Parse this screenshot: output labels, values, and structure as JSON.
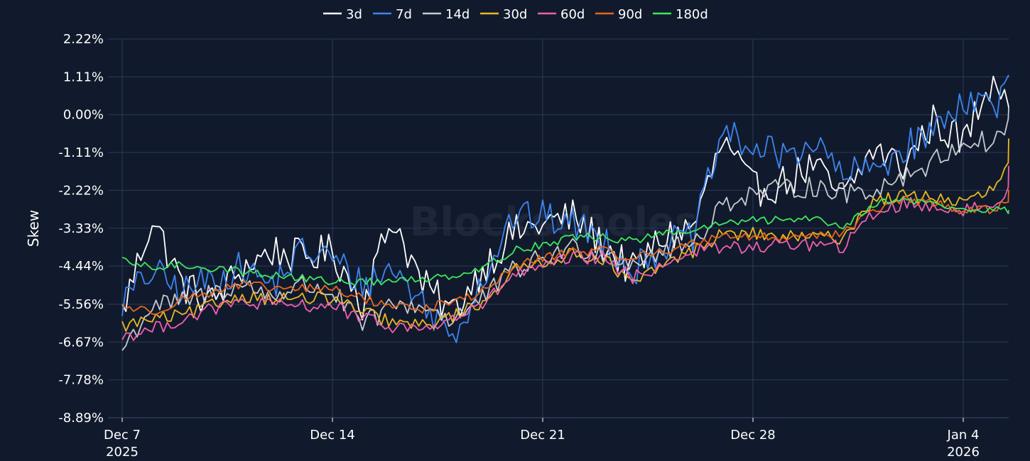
{
  "chart_data": {
    "type": "line",
    "xlabel": "",
    "ylabel": "Skew",
    "ylim": [
      -8.89,
      2.22
    ],
    "y_ticks": [
      "2.22%",
      "1.11%",
      "0.00%",
      "-1.11%",
      "-2.22%",
      "-3.33%",
      "-4.44%",
      "-5.56%",
      "-6.67%",
      "-7.78%",
      "-8.89%"
    ],
    "y_tick_values": [
      2.22,
      1.11,
      0.0,
      -1.11,
      -2.22,
      -3.33,
      -4.44,
      -5.56,
      -6.67,
      -7.78,
      -8.89
    ],
    "x_range": [
      "2025-12-07",
      "2026-01-06"
    ],
    "x_ticks": [
      {
        "date": "2025-12-07",
        "label": "Dec 7",
        "sublabel": "2025"
      },
      {
        "date": "2025-12-14",
        "label": "Dec 14",
        "sublabel": ""
      },
      {
        "date": "2025-12-21",
        "label": "Dec 21",
        "sublabel": ""
      },
      {
        "date": "2025-12-28",
        "label": "Dec 28",
        "sublabel": ""
      },
      {
        "date": "2026-01-04",
        "label": "Jan 4",
        "sublabel": "2026"
      }
    ],
    "legend_position": "top-center",
    "grid": true,
    "watermark": "Blockscholes",
    "x": [
      "2025-12-07",
      "2025-12-08",
      "2025-12-09",
      "2025-12-10",
      "2025-12-11",
      "2025-12-12",
      "2025-12-13",
      "2025-12-14",
      "2025-12-15",
      "2025-12-16",
      "2025-12-17",
      "2025-12-18",
      "2025-12-19",
      "2025-12-20",
      "2025-12-21",
      "2025-12-22",
      "2025-12-23",
      "2025-12-24",
      "2025-12-25",
      "2025-12-26",
      "2025-12-27",
      "2025-12-28",
      "2025-12-29",
      "2025-12-30",
      "2025-12-31",
      "2026-01-01",
      "2026-01-02",
      "2026-01-03",
      "2026-01-04",
      "2026-01-05",
      "2026-01-06"
    ],
    "series": [
      {
        "name": "3d",
        "color": "#ffffff",
        "values": [
          -5.8,
          -3.0,
          -5.0,
          -5.5,
          -4.5,
          -4.0,
          -4.2,
          -4.0,
          -5.5,
          -3.0,
          -5.0,
          -5.8,
          -4.5,
          -3.5,
          -3.2,
          -3.0,
          -3.8,
          -4.6,
          -3.6,
          -3.3,
          -0.8,
          -2.2,
          -2.0,
          -1.5,
          -2.5,
          -1.0,
          -1.5,
          -0.2,
          -0.8,
          1.2,
          0.2
        ]
      },
      {
        "name": "7d",
        "color": "#3d85f0",
        "values": [
          -5.5,
          -4.6,
          -5.2,
          -4.8,
          -4.5,
          -5.0,
          -4.0,
          -4.2,
          -5.0,
          -4.5,
          -5.5,
          -6.5,
          -4.8,
          -3.0,
          -3.0,
          -3.2,
          -3.6,
          -4.6,
          -3.8,
          -3.6,
          -0.5,
          -1.0,
          -1.2,
          -0.8,
          -1.8,
          -1.6,
          -1.0,
          -0.5,
          0.5,
          0.3,
          1.1
        ]
      },
      {
        "name": "14d",
        "color": "#c6c9d0",
        "values": [
          -6.9,
          -5.6,
          -5.5,
          -5.2,
          -5.0,
          -5.3,
          -5.0,
          -5.2,
          -6.2,
          -5.6,
          -5.6,
          -6.0,
          -5.4,
          -4.6,
          -4.2,
          -3.9,
          -4.0,
          -4.3,
          -4.0,
          -3.8,
          -2.6,
          -2.3,
          -2.2,
          -2.1,
          -2.3,
          -2.2,
          -1.8,
          -1.4,
          -0.8,
          -0.8,
          0.2
        ]
      },
      {
        "name": "30d",
        "color": "#e9b824",
        "values": [
          -6.2,
          -6.0,
          -5.9,
          -5.6,
          -5.3,
          -5.4,
          -5.4,
          -5.4,
          -5.8,
          -6.1,
          -6.2,
          -5.9,
          -5.5,
          -4.6,
          -4.3,
          -4.1,
          -4.2,
          -5.0,
          -4.4,
          -4.0,
          -3.5,
          -3.5,
          -3.6,
          -3.6,
          -3.6,
          -2.5,
          -2.4,
          -2.4,
          -2.6,
          -2.2,
          -0.7
        ]
      },
      {
        "name": "60d",
        "color": "#f25fb0",
        "values": [
          -6.5,
          -6.3,
          -6.0,
          -5.7,
          -5.5,
          -5.6,
          -5.6,
          -5.6,
          -6.0,
          -6.2,
          -6.3,
          -6.0,
          -5.6,
          -4.7,
          -4.5,
          -4.2,
          -4.2,
          -4.8,
          -4.4,
          -4.0,
          -3.9,
          -3.9,
          -3.8,
          -3.8,
          -3.9,
          -2.9,
          -2.6,
          -2.7,
          -2.8,
          -2.7,
          -1.5
        ]
      },
      {
        "name": "90d",
        "color": "#e8651c",
        "values": [
          -5.6,
          -5.8,
          -5.4,
          -5.2,
          -5.0,
          -5.1,
          -5.1,
          -5.1,
          -5.4,
          -5.6,
          -5.7,
          -5.5,
          -5.2,
          -4.5,
          -4.2,
          -4.0,
          -4.0,
          -4.2,
          -4.0,
          -3.8,
          -3.5,
          -3.6,
          -3.6,
          -3.5,
          -3.5,
          -2.8,
          -2.5,
          -2.6,
          -2.8,
          -2.8,
          -2.2
        ]
      },
      {
        "name": "180d",
        "color": "#3fe65e",
        "values": [
          -4.3,
          -4.5,
          -4.4,
          -4.5,
          -4.6,
          -4.7,
          -4.8,
          -4.9,
          -4.9,
          -4.9,
          -4.8,
          -4.7,
          -4.5,
          -4.0,
          -3.8,
          -3.6,
          -3.6,
          -3.7,
          -3.5,
          -3.4,
          -3.2,
          -3.1,
          -3.1,
          -3.0,
          -3.3,
          -2.6,
          -2.5,
          -2.6,
          -2.8,
          -2.8,
          -2.8
        ]
      }
    ]
  }
}
